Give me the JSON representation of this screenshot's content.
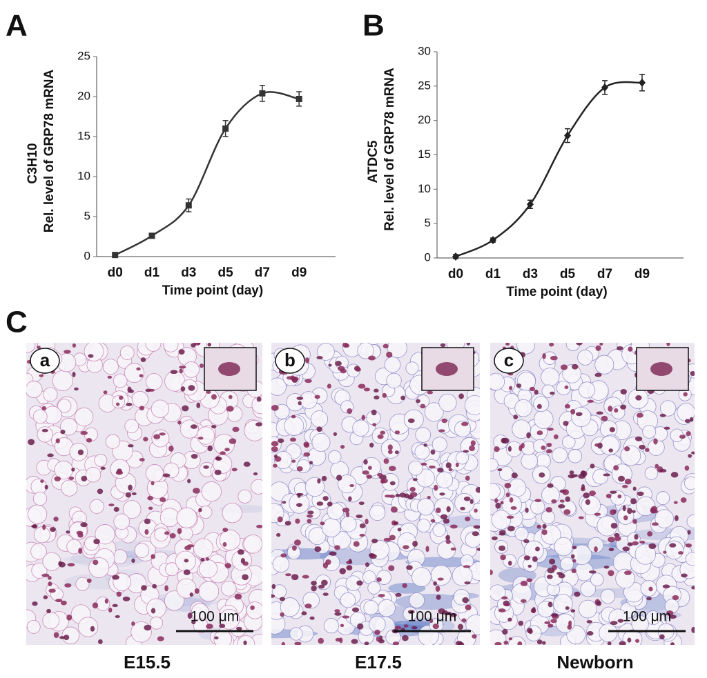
{
  "chart_data": [
    {
      "type": "line",
      "panel": "A",
      "y_title": "C3H10",
      "y_subtitle": "Rel. level of GRP78 mRNA",
      "x_title": "Time point (day)",
      "categories": [
        "d0",
        "d1",
        "d3",
        "d5",
        "d7",
        "d9"
      ],
      "series": [
        {
          "name": "C3H10",
          "color": "#333333",
          "marker": "square",
          "values": [
            0.2,
            2.6,
            6.4,
            16,
            20.4,
            19.7
          ],
          "errors": [
            0.3,
            0.3,
            0.8,
            1.0,
            1.0,
            0.9
          ]
        }
      ],
      "ylim": [
        0,
        25
      ],
      "yticks": [
        0,
        5,
        10,
        15,
        20,
        25
      ],
      "grid": false
    },
    {
      "type": "line",
      "panel": "B",
      "y_title": "ATDC5",
      "y_subtitle": "Rel. level of GRP78 mRNA",
      "x_title": "Time point (day)",
      "categories": [
        "d0",
        "d1",
        "d3",
        "d5",
        "d7",
        "d9"
      ],
      "series": [
        {
          "name": "ATDC5",
          "color": "#222222",
          "marker": "diamond",
          "values": [
            0.2,
            2.6,
            7.8,
            17.8,
            24.8,
            25.5
          ],
          "errors": [
            0.3,
            0.3,
            0.6,
            1.0,
            1.0,
            1.2
          ]
        }
      ],
      "ylim": [
        0,
        30
      ],
      "yticks": [
        0,
        5,
        10,
        15,
        20,
        25,
        30
      ],
      "grid": false
    }
  ],
  "panel_c": {
    "label": "C",
    "micrographs": [
      {
        "tag": "a",
        "scale_bar": "100 μm",
        "caption": "E15.5"
      },
      {
        "tag": "b",
        "scale_bar": "100 μm",
        "caption": "E17.5"
      },
      {
        "tag": "c",
        "scale_bar": "100 μm",
        "caption": "Newborn"
      }
    ]
  }
}
